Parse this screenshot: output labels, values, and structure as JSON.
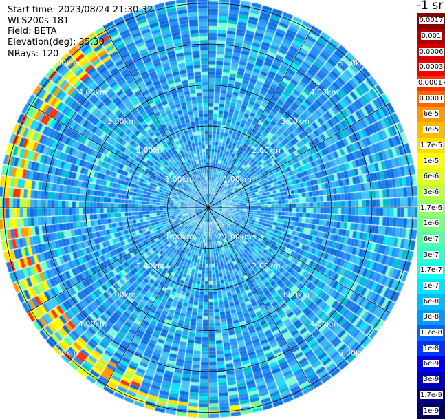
{
  "info": {
    "start_time": "Start time: 2023/08/24 21:30:32",
    "instrument": "WLS200s-181",
    "field": "Field: BETA",
    "elevation": "Elevation(deg): 35.30",
    "nrays": "NRays: 120"
  },
  "map": {
    "max_range_km": 5.6,
    "rays": 120,
    "ring_labels": [
      "1.00km",
      "2.00km",
      "3.00km",
      "4.00km",
      "5.00km"
    ],
    "colors": {
      "background_cell": "#1e90ff",
      "ring_line": "#000000",
      "ray_gap": "#ffffff",
      "range_label": "#ffffff"
    }
  },
  "legend": {
    "title": "-1 sr",
    "entries": [
      {
        "label": "0.0017",
        "color": "#8b0000"
      },
      {
        "label": "0.001",
        "color": "#b00000"
      },
      {
        "label": "0.0006",
        "color": "#d40000"
      },
      {
        "label": "0.0003",
        "color": "#f00000"
      },
      {
        "label": "0.00017",
        "color": "#ff3300"
      },
      {
        "label": "0.0001",
        "color": "#ff6600"
      },
      {
        "label": "6e-5",
        "color": "#ff9900"
      },
      {
        "label": "3e-5",
        "color": "#ffbb00"
      },
      {
        "label": "1.7e-5",
        "color": "#ffdd00"
      },
      {
        "label": "1e-5",
        "color": "#ffff00"
      },
      {
        "label": "6e-6",
        "color": "#ddff22"
      },
      {
        "label": "3e-6",
        "color": "#bbff44"
      },
      {
        "label": "1.7e-6",
        "color": "#99ff66"
      },
      {
        "label": "1e-6",
        "color": "#77ff88"
      },
      {
        "label": "6e-7",
        "color": "#55ffaa"
      },
      {
        "label": "3e-7",
        "color": "#33ffcc"
      },
      {
        "label": "1.7e-7",
        "color": "#11ffee"
      },
      {
        "label": "1e-7",
        "color": "#00e5ff"
      },
      {
        "label": "6e-8",
        "color": "#00bbff"
      },
      {
        "label": "3e-8",
        "color": "#0099ff"
      },
      {
        "label": "1.7e-8",
        "color": "#0066ff"
      },
      {
        "label": "1e-8",
        "color": "#0033ff"
      },
      {
        "label": "6e-9",
        "color": "#0000ee"
      },
      {
        "label": "3e-9",
        "color": "#0000bb"
      },
      {
        "label": "1.7e-9",
        "color": "#000088"
      },
      {
        "label": "1e-9",
        "color": "#000060"
      }
    ]
  }
}
